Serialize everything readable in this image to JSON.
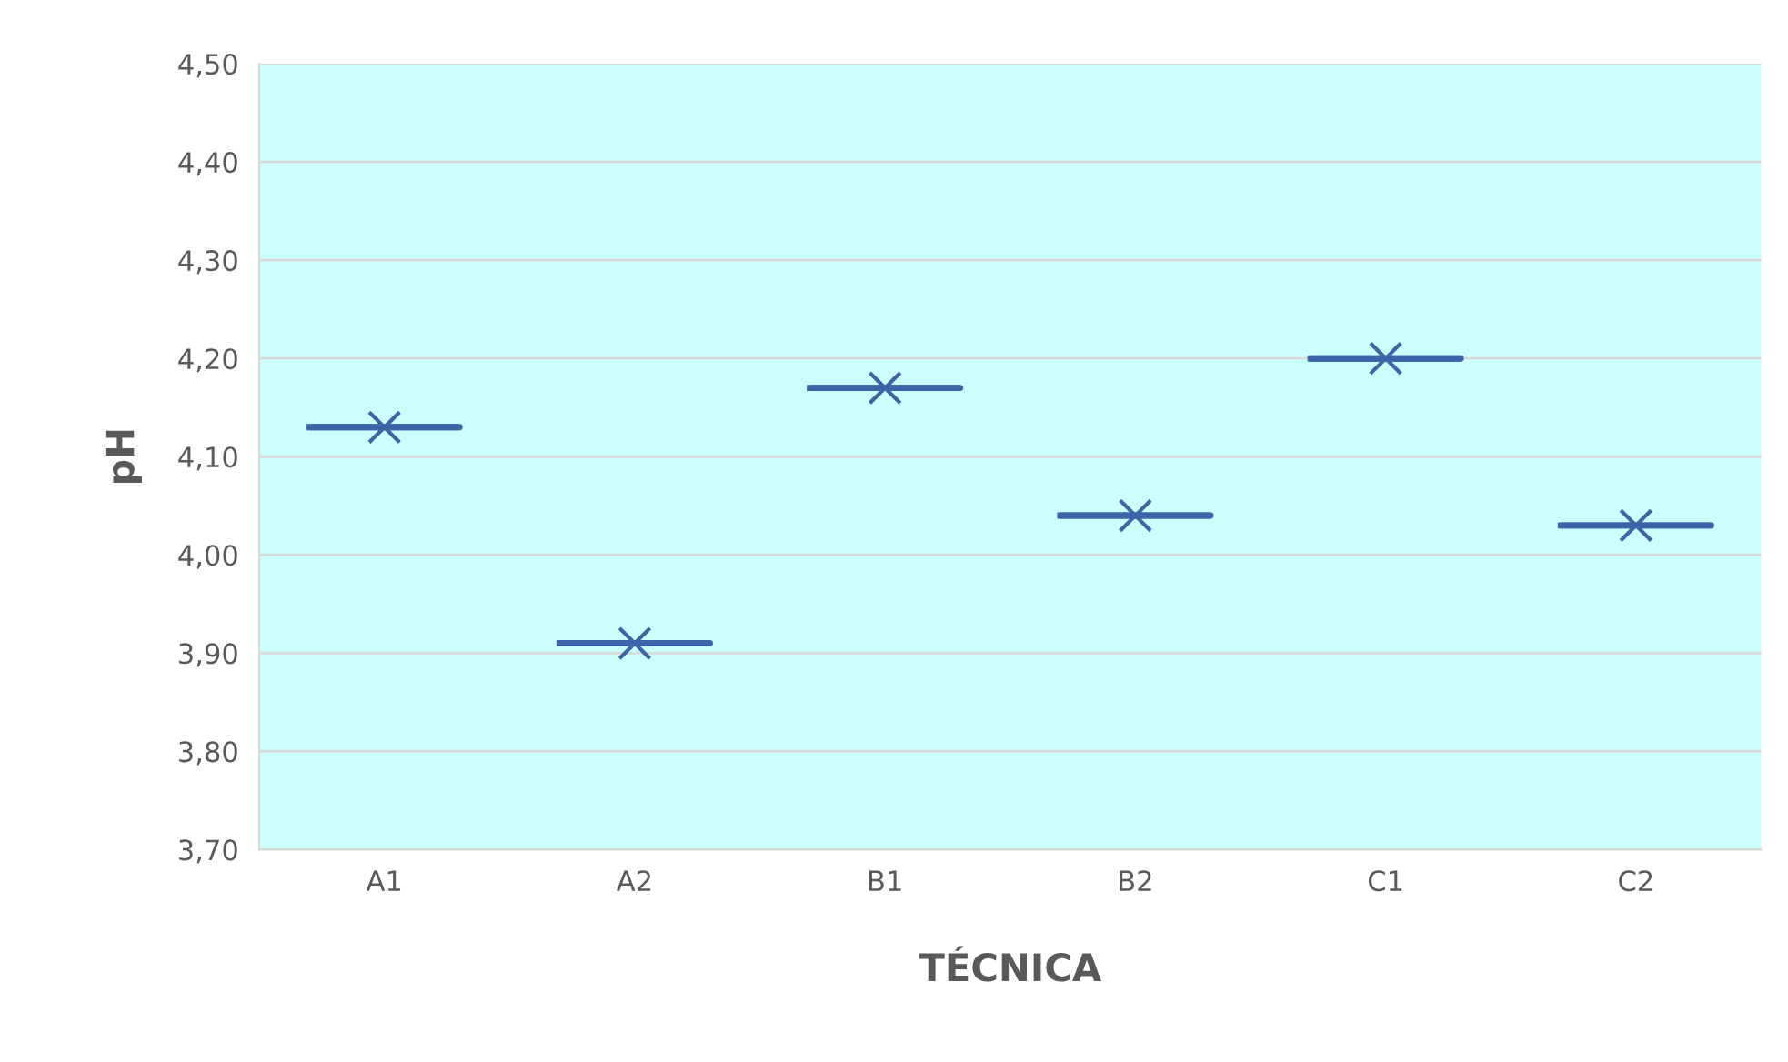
{
  "chart_data": {
    "type": "box",
    "xlabel": "TÉCNICA",
    "ylabel": "pH",
    "categories": [
      "A1",
      "A2",
      "B1",
      "B2",
      "C1",
      "C2"
    ],
    "color": "#3c64a8",
    "marker": "cross",
    "grid": "y",
    "boxes": [
      {
        "low": 4.13,
        "q1": 4.13,
        "median": 4.13,
        "q3": 4.13,
        "high": 4.13,
        "mean": 4.13
      },
      {
        "low": 3.91,
        "q1": 3.91,
        "median": 3.91,
        "q3": 3.91,
        "high": 3.91,
        "mean": 3.91
      },
      {
        "low": 4.17,
        "q1": 4.17,
        "median": 4.17,
        "q3": 4.17,
        "high": 4.17,
        "mean": 4.17
      },
      {
        "low": 4.04,
        "q1": 4.04,
        "median": 4.04,
        "q3": 4.04,
        "high": 4.04,
        "mean": 4.04
      },
      {
        "low": 4.2,
        "q1": 4.2,
        "median": 4.2,
        "q3": 4.2,
        "high": 4.2,
        "mean": 4.2
      },
      {
        "low": 4.03,
        "q1": 4.03,
        "median": 4.03,
        "q3": 4.03,
        "high": 4.03,
        "mean": 4.03
      }
    ],
    "ylim": [
      3.7,
      4.5
    ],
    "yticks": [
      {
        "value": 3.7,
        "label": "3,70"
      },
      {
        "value": 3.8,
        "label": "3,80"
      },
      {
        "value": 3.9,
        "label": "3,90"
      },
      {
        "value": 4.0,
        "label": "4,00"
      },
      {
        "value": 4.1,
        "label": "4,10"
      },
      {
        "value": 4.2,
        "label": "4,20"
      },
      {
        "value": 4.3,
        "label": "4,30"
      },
      {
        "value": 4.4,
        "label": "4,40"
      },
      {
        "value": 4.5,
        "label": "4,50"
      }
    ]
  }
}
